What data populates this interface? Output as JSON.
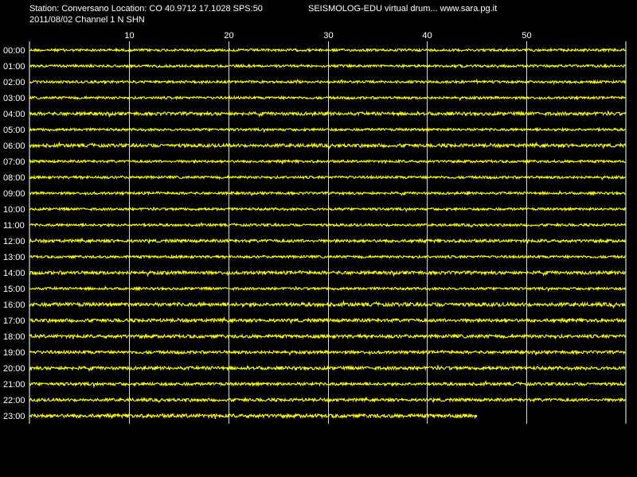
{
  "header": {
    "station_line": "Station: Conversano Location: CO 40.9712 17.1028 SPS:50",
    "app_line": "SEISMOLOG-EDU virtual drum... www.sara.pg.it",
    "date_channel_line": "2011/08/02  Channel 1 N SHN"
  },
  "colors": {
    "background": "#000000",
    "trace": "#ffff00",
    "grid": "#ffffff",
    "text": "#ffffff"
  },
  "chart_data": {
    "type": "line",
    "xlabel": "",
    "ylabel": "",
    "xlim": [
      0,
      60
    ],
    "x_ticks": [
      "10",
      "20",
      "30",
      "40",
      "50"
    ],
    "x_tick_values": [
      10,
      20,
      30,
      40,
      50
    ],
    "rows": [
      "00:00",
      "01:00",
      "02:00",
      "03:00",
      "04:00",
      "05:00",
      "06:00",
      "07:00",
      "08:00",
      "09:00",
      "10:00",
      "11:00",
      "12:00",
      "13:00",
      "14:00",
      "15:00",
      "16:00",
      "17:00",
      "18:00",
      "19:00",
      "20:00",
      "21:00",
      "22:00",
      "23:00"
    ],
    "row_end_minutes": [
      60,
      60,
      60,
      60,
      60,
      60,
      60,
      60,
      60,
      60,
      60,
      60,
      60,
      60,
      60,
      60,
      60,
      60,
      60,
      60,
      60,
      60,
      60,
      45
    ],
    "noise_level": [
      1.5,
      1.5,
      1.5,
      1.5,
      2.0,
      1.5,
      2.0,
      1.5,
      1.5,
      1.5,
      1.5,
      1.5,
      1.8,
      1.5,
      2.0,
      1.5,
      2.2,
      2.0,
      2.0,
      1.8,
      2.0,
      1.8,
      1.8,
      2.2
    ],
    "grid": true
  }
}
